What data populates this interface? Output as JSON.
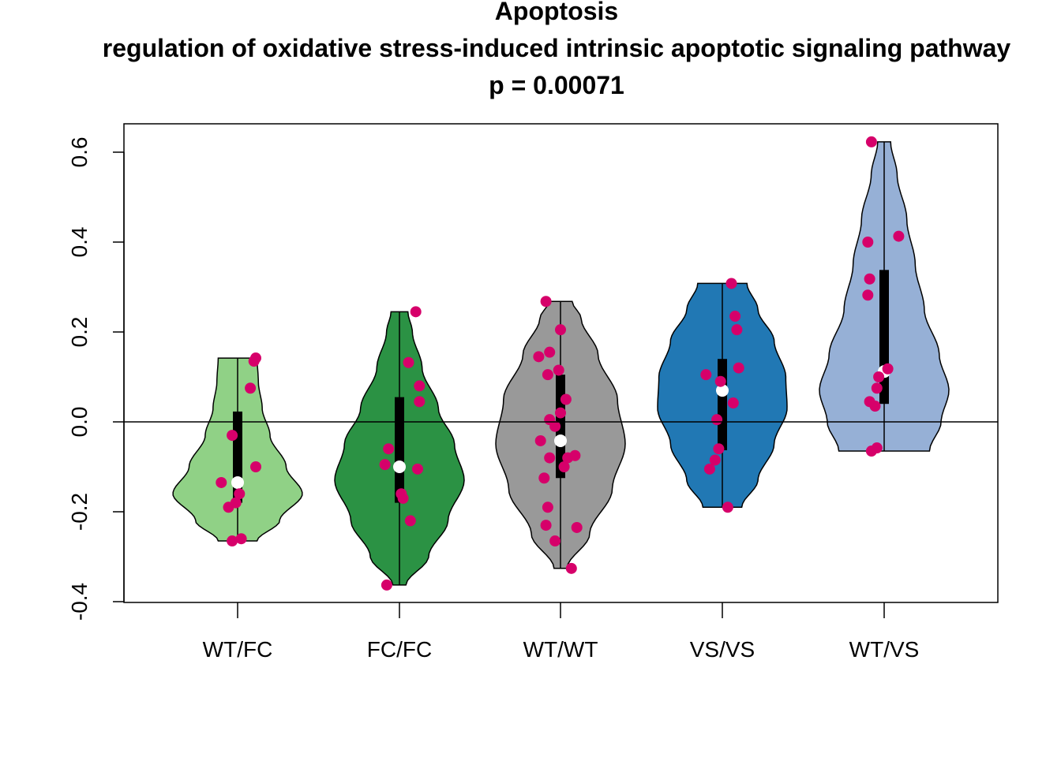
{
  "chart_data": {
    "type": "violin",
    "title_lines": [
      "Apoptosis",
      "regulation of oxidative stress-induced intrinsic apoptotic signaling pathway",
      "p = 0.00071"
    ],
    "xlabel": "",
    "ylabel": "",
    "ylim": [
      -0.4,
      0.65
    ],
    "yticks": [
      -0.4,
      -0.2,
      0.0,
      0.2,
      0.4,
      0.6
    ],
    "ytick_labels": [
      "-0.4",
      "-0.2",
      "0.0",
      "0.2",
      "0.4",
      "0.6"
    ],
    "reference_line": 0.0,
    "point_color": "#d6006a",
    "categories": [
      "WT/FC",
      "FC/FC",
      "WT/WT",
      "VS/VS",
      "WT/VS"
    ],
    "groups": [
      {
        "label": "WT/FC",
        "color": "#90d186",
        "min": -0.265,
        "max": 0.142,
        "q1": -0.18,
        "q3": 0.023,
        "median": -0.135,
        "density": [
          [
            -0.265,
            0.3
          ],
          [
            -0.22,
            0.65
          ],
          [
            -0.16,
            1.0
          ],
          [
            -0.1,
            0.75
          ],
          [
            -0.03,
            0.5
          ],
          [
            0.03,
            0.38
          ],
          [
            0.09,
            0.32
          ],
          [
            0.142,
            0.3
          ]
        ],
        "points": [
          [
            -0.03,
            -0.265
          ],
          [
            0.02,
            -0.26
          ],
          [
            -0.05,
            -0.19
          ],
          [
            -0.09,
            -0.135
          ],
          [
            0.01,
            -0.16
          ],
          [
            -0.01,
            -0.18
          ],
          [
            0.1,
            -0.1
          ],
          [
            -0.03,
            -0.03
          ],
          [
            0.07,
            0.075
          ],
          [
            0.09,
            0.135
          ],
          [
            0.1,
            0.142
          ]
        ]
      },
      {
        "label": "FC/FC",
        "color": "#2b9244",
        "min": -0.363,
        "max": 0.245,
        "q1": -0.18,
        "q3": 0.055,
        "median": -0.1,
        "density": [
          [
            -0.363,
            0.1
          ],
          [
            -0.3,
            0.45
          ],
          [
            -0.22,
            0.75
          ],
          [
            -0.13,
            1.0
          ],
          [
            -0.05,
            0.85
          ],
          [
            0.03,
            0.6
          ],
          [
            0.12,
            0.35
          ],
          [
            0.2,
            0.2
          ],
          [
            0.245,
            0.13
          ]
        ],
        "points": [
          [
            -0.07,
            -0.363
          ],
          [
            0.06,
            -0.22
          ],
          [
            0.02,
            -0.17
          ],
          [
            0.01,
            -0.16
          ],
          [
            0.1,
            -0.105
          ],
          [
            -0.08,
            -0.095
          ],
          [
            -0.06,
            -0.06
          ],
          [
            0.11,
            0.045
          ],
          [
            0.11,
            0.08
          ],
          [
            0.05,
            0.132
          ],
          [
            0.09,
            0.245
          ]
        ]
      },
      {
        "label": "WT/WT",
        "color": "#999999",
        "min": -0.326,
        "max": 0.268,
        "q1": -0.125,
        "q3": 0.105,
        "median": -0.042,
        "density": [
          [
            -0.326,
            0.1
          ],
          [
            -0.25,
            0.45
          ],
          [
            -0.15,
            0.8
          ],
          [
            -0.05,
            1.0
          ],
          [
            0.05,
            0.88
          ],
          [
            0.15,
            0.58
          ],
          [
            0.23,
            0.32
          ],
          [
            0.268,
            0.18
          ]
        ],
        "points": [
          [
            0.06,
            -0.326
          ],
          [
            -0.03,
            -0.265
          ],
          [
            0.09,
            -0.235
          ],
          [
            -0.08,
            -0.23
          ],
          [
            -0.07,
            -0.19
          ],
          [
            -0.09,
            -0.125
          ],
          [
            0.02,
            -0.1
          ],
          [
            -0.06,
            -0.08
          ],
          [
            0.08,
            -0.075
          ],
          [
            0.04,
            -0.08
          ],
          [
            -0.11,
            -0.042
          ],
          [
            -0.03,
            -0.01
          ],
          [
            -0.06,
            0.005
          ],
          [
            0.0,
            0.02
          ],
          [
            0.03,
            0.05
          ],
          [
            -0.07,
            0.105
          ],
          [
            -0.01,
            0.115
          ],
          [
            -0.12,
            0.145
          ],
          [
            -0.06,
            0.155
          ],
          [
            0.0,
            0.205
          ],
          [
            -0.08,
            0.268
          ]
        ]
      },
      {
        "label": "VS/VS",
        "color": "#2178b4",
        "min": -0.19,
        "max": 0.308,
        "q1": -0.063,
        "q3": 0.14,
        "median": 0.07,
        "density": [
          [
            -0.19,
            0.3
          ],
          [
            -0.13,
            0.55
          ],
          [
            -0.05,
            0.8
          ],
          [
            0.03,
            1.0
          ],
          [
            0.1,
            0.98
          ],
          [
            0.18,
            0.8
          ],
          [
            0.25,
            0.55
          ],
          [
            0.308,
            0.38
          ]
        ],
        "points": [
          [
            0.03,
            -0.19
          ],
          [
            -0.07,
            -0.105
          ],
          [
            -0.04,
            -0.085
          ],
          [
            -0.02,
            -0.06
          ],
          [
            -0.03,
            0.005
          ],
          [
            0.06,
            0.042
          ],
          [
            -0.01,
            0.09
          ],
          [
            -0.09,
            0.105
          ],
          [
            0.09,
            0.12
          ],
          [
            0.08,
            0.205
          ],
          [
            0.07,
            0.235
          ],
          [
            0.05,
            0.308
          ]
        ]
      },
      {
        "label": "WT/VS",
        "color": "#96b0d6",
        "min": -0.065,
        "max": 0.623,
        "q1": 0.04,
        "q3": 0.338,
        "median": 0.112,
        "density": [
          [
            -0.065,
            0.7
          ],
          [
            0.0,
            0.88
          ],
          [
            0.07,
            1.0
          ],
          [
            0.15,
            0.85
          ],
          [
            0.25,
            0.62
          ],
          [
            0.35,
            0.48
          ],
          [
            0.45,
            0.35
          ],
          [
            0.55,
            0.2
          ],
          [
            0.623,
            0.1
          ]
        ],
        "points": [
          [
            -0.07,
            -0.065
          ],
          [
            -0.04,
            -0.058
          ],
          [
            -0.05,
            0.035
          ],
          [
            -0.08,
            0.045
          ],
          [
            -0.04,
            0.075
          ],
          [
            -0.03,
            0.1
          ],
          [
            0.02,
            0.118
          ],
          [
            -0.09,
            0.282
          ],
          [
            -0.08,
            0.318
          ],
          [
            -0.09,
            0.4
          ],
          [
            0.08,
            0.413
          ],
          [
            -0.07,
            0.623
          ]
        ]
      }
    ]
  }
}
